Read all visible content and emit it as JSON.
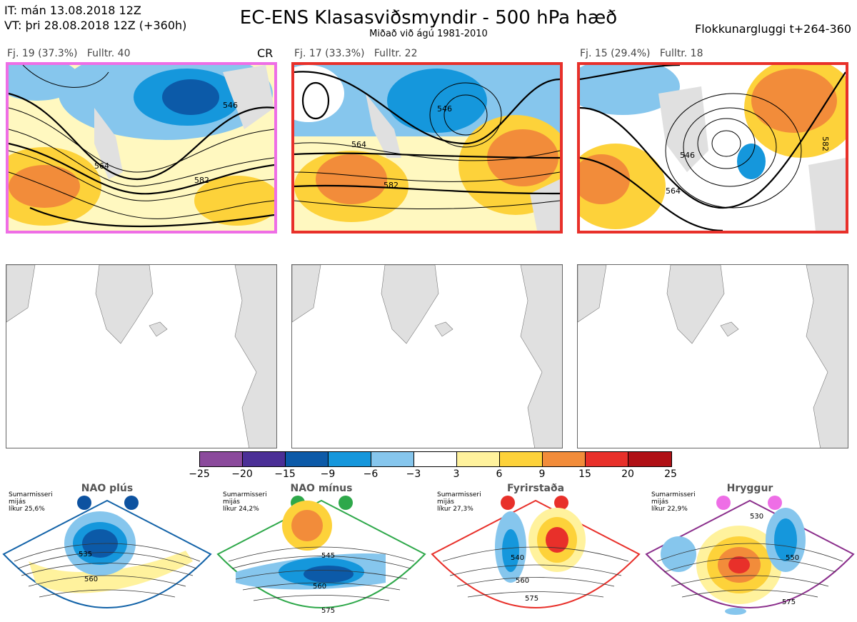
{
  "header": {
    "it_line": "IT: mán 13.08.2018 12Z",
    "vt_line": "VT: þri 28.08.2018 12Z  (+360h)",
    "title": "EC-ENS Klasasviðsmyndir - 500 hPa hæð",
    "subtitle": "Miðað við ágú 1981-2010",
    "window": "Flokkunargluggi t+264-360"
  },
  "panels": [
    {
      "label": "Fj. 19 (37.3%)",
      "rep": "Fulltr. 40",
      "tag": "CR",
      "border": "#ee6ee6",
      "contours": [
        "546",
        "564",
        "582"
      ]
    },
    {
      "label": "Fj. 17 (33.3%)",
      "rep": "Fulltr. 22",
      "tag": "",
      "border": "#e8302a",
      "contours": [
        "546",
        "564",
        "582"
      ]
    },
    {
      "label": "Fj. 15 (29.4%)",
      "rep": "Fulltr. 18",
      "tag": "",
      "border": "#e8302a",
      "contours": [
        "546",
        "564",
        "582"
      ]
    }
  ],
  "colorbar": {
    "colors": [
      "#8b4a9c",
      "#4b2f96",
      "#0c5aa8",
      "#1597dc",
      "#86c6ed",
      "#ffffff",
      "#fff29d",
      "#fdd23a",
      "#f28c3a",
      "#e8302a",
      "#b01015"
    ],
    "ticks": [
      "−25",
      "−20",
      "−15",
      "−9",
      "−6",
      "−3",
      "3",
      "6",
      "9",
      "15",
      "20",
      "25"
    ]
  },
  "regimes": [
    {
      "name": "NAO plús",
      "season": "Sumarmisseri",
      "bin": "mijás",
      "prob": "líkur 25,6%",
      "frame": "#1363a8",
      "dot": "#0d52a0",
      "contours": [
        "535",
        "560"
      ]
    },
    {
      "name": "NAO mínus",
      "season": "Sumarmisseri",
      "bin": "mijás",
      "prob": "líkur 24,2%",
      "frame": "#2ea84a",
      "dot": "#2ea84a",
      "contours": [
        "545",
        "560",
        "575"
      ]
    },
    {
      "name": "Fyrirstaða",
      "season": "Sumarmisseri",
      "bin": "mijás",
      "prob": "líkur 27,3%",
      "frame": "#e8302a",
      "dot": "#e8302a",
      "contours": [
        "540",
        "560",
        "575"
      ]
    },
    {
      "name": "Hryggur",
      "season": "Sumarmisseri",
      "bin": "mijás",
      "prob": "líkur 22,9%",
      "frame": "#8b2f8c",
      "dot": "#ee6ee6",
      "contours": [
        "530",
        "550",
        "575"
      ]
    }
  ]
}
